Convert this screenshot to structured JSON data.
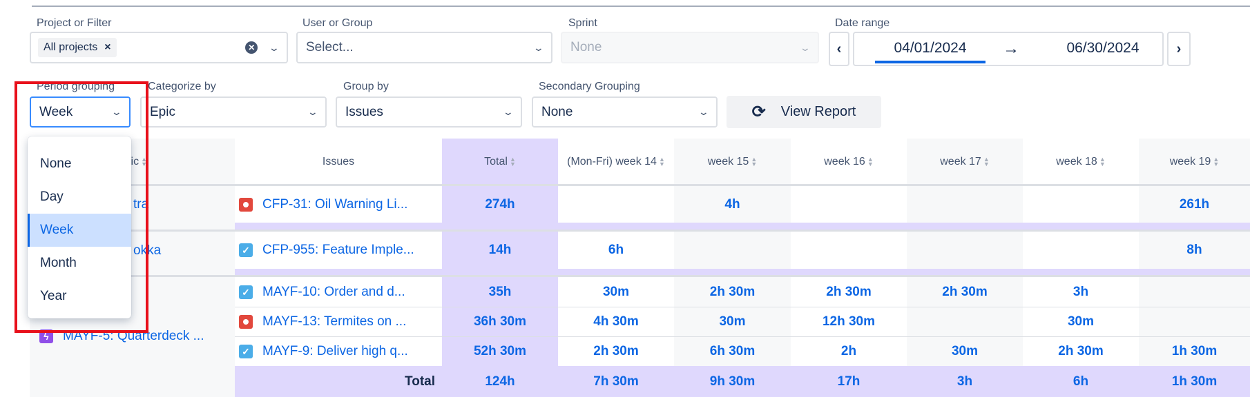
{
  "filters": {
    "project": {
      "label": "Project or Filter",
      "chip": "All projects"
    },
    "user": {
      "label": "User or Group",
      "placeholder": "Select..."
    },
    "sprint": {
      "label": "Sprint",
      "value": "None"
    },
    "date_range": {
      "label": "Date range",
      "start": "04/01/2024",
      "end": "06/30/2024"
    },
    "period_grouping": {
      "label": "Period grouping",
      "value": "Week",
      "options": [
        "None",
        "Day",
        "Week",
        "Month",
        "Year"
      ],
      "selected_index": 2
    },
    "categorize_by": {
      "label": "Categorize by",
      "value": "Epic"
    },
    "group_by": {
      "label": "Group by",
      "value": "Issues"
    },
    "secondary_grouping": {
      "label": "Secondary Grouping",
      "value": "None"
    },
    "view_report": "View Report"
  },
  "table": {
    "headers": {
      "epic": "Epic",
      "issues": "Issues",
      "total": "Total",
      "periods": [
        "(Mon-Fri) week 14",
        "week 15",
        "week 16",
        "week 17",
        "week 18",
        "week 19"
      ]
    },
    "groups": [
      {
        "epic": "tra",
        "rows": [
          {
            "type": "bug",
            "issue": "CFP-31: Oil Warning Li...",
            "total": "274h",
            "values": [
              "",
              "4h",
              "",
              "",
              "",
              "261h"
            ]
          }
        ]
      },
      {
        "epic": "okka",
        "rows": [
          {
            "type": "task",
            "issue": "CFP-955: Feature Imple...",
            "total": "14h",
            "values": [
              "6h",
              "",
              "",
              "",
              "",
              "8h"
            ]
          }
        ]
      },
      {
        "epic": "MAYF-5: Quarterdeck ...",
        "rows": [
          {
            "type": "task",
            "issue": "MAYF-10: Order and d...",
            "total": "35h",
            "values": [
              "30m",
              "2h 30m",
              "2h 30m",
              "2h 30m",
              "3h",
              ""
            ]
          },
          {
            "type": "bug",
            "issue": "MAYF-13: Termites on ...",
            "total": "36h 30m",
            "values": [
              "4h 30m",
              "30m",
              "12h 30m",
              "",
              "30m",
              ""
            ]
          },
          {
            "type": "task",
            "issue": "MAYF-9: Deliver high q...",
            "total": "52h 30m",
            "values": [
              "2h 30m",
              "6h 30m",
              "2h",
              "30m",
              "2h 30m",
              "1h 30m"
            ]
          }
        ]
      }
    ],
    "total_row": {
      "label": "Total",
      "total": "124h",
      "values": [
        "7h 30m",
        "9h 30m",
        "17h",
        "3h",
        "6h",
        "1h 30m"
      ]
    }
  },
  "colors": {
    "accent": "#0c66e4",
    "total_column": "#dfd8fd",
    "highlight_box": "#e8101b",
    "bug": "#e2483d",
    "task": "#4bade8",
    "epic": "#8f4fe8"
  }
}
